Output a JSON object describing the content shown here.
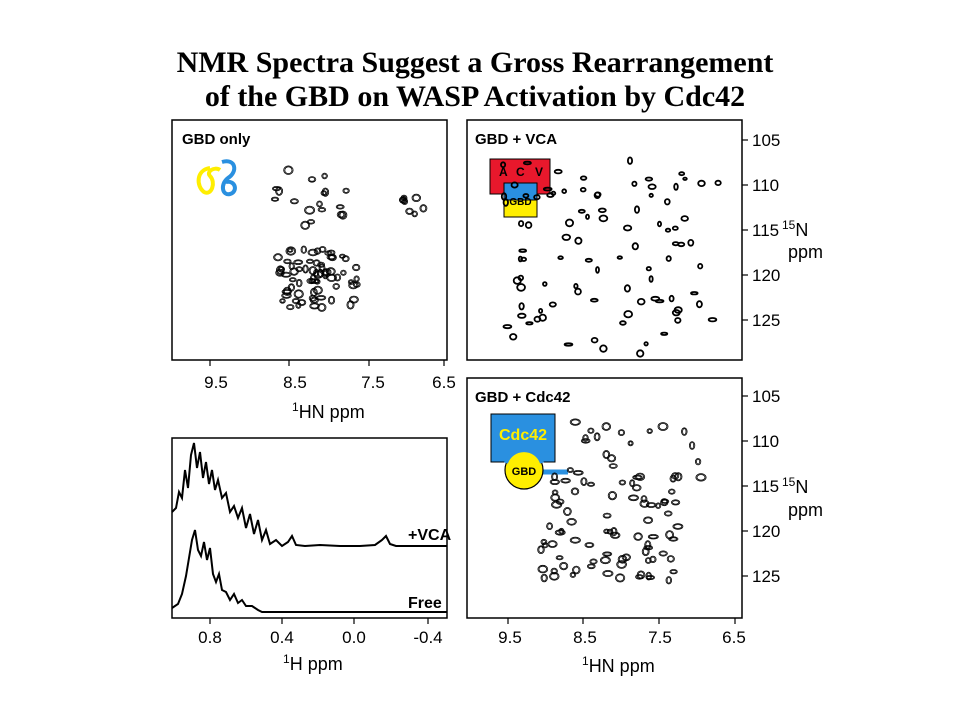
{
  "title": {
    "line1": "NMR Spectra Suggest a Gross Rearrangement",
    "line2": "of the GBD on WASP Activation by Cdc42"
  },
  "panels": {
    "gbd_only": {
      "label": "GBD only"
    },
    "gbd_vca": {
      "label": "GBD + VCA",
      "glyph_letters": [
        "A",
        "C",
        "V"
      ],
      "glyph_box": "GBD"
    },
    "gbd_cdc42": {
      "label": "GBD + Cdc42",
      "glyph_box": "Cdc42",
      "glyph_circle": "GBD"
    },
    "one_d": {
      "trace_labels": [
        "+VCA",
        "Free"
      ]
    }
  },
  "axes": {
    "hn_ticks": [
      "9.5",
      "8.5",
      "7.5",
      "6.5"
    ],
    "n15_ticks": [
      "105",
      "110",
      "115",
      "120",
      "125"
    ],
    "h_ticks": [
      "0.8",
      "0.4",
      "0.0",
      "-0.4"
    ],
    "hn_label_sup": "1",
    "hn_label": "HN ppm",
    "h_label_sup": "1",
    "h_label": "H ppm",
    "n15_label_sup": "15",
    "n15_label": "N",
    "n15_label2": "ppm"
  },
  "colors": {
    "yellow": "#ffee00",
    "blue": "#2a90e0",
    "red": "#e8182c"
  }
}
